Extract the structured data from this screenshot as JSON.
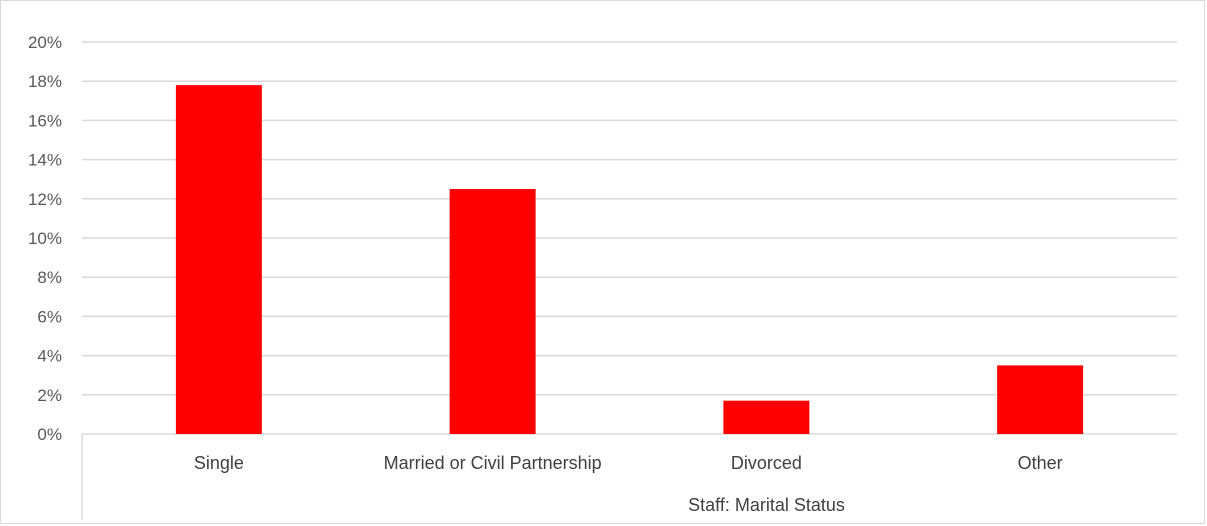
{
  "chart_data": {
    "type": "bar",
    "categories": [
      "Single",
      "Married or Civil Partnership",
      "Divorced",
      "Other"
    ],
    "values": [
      17.8,
      12.5,
      1.7,
      3.5
    ],
    "value_unit": "%",
    "title": "",
    "xlabel": "Staff: Marital Status",
    "ylabel": "",
    "ylim": [
      0,
      20
    ],
    "yticks": [
      0,
      2,
      4,
      6,
      8,
      10,
      12,
      14,
      16,
      18,
      20
    ],
    "ytick_labels": [
      "0%",
      "2%",
      "4%",
      "6%",
      "8%",
      "10%",
      "12%",
      "14%",
      "16%",
      "18%",
      "20%"
    ],
    "grid": true,
    "legend": "none",
    "bar_color": "#ff0000",
    "grid_color": "#d9d9d9"
  }
}
